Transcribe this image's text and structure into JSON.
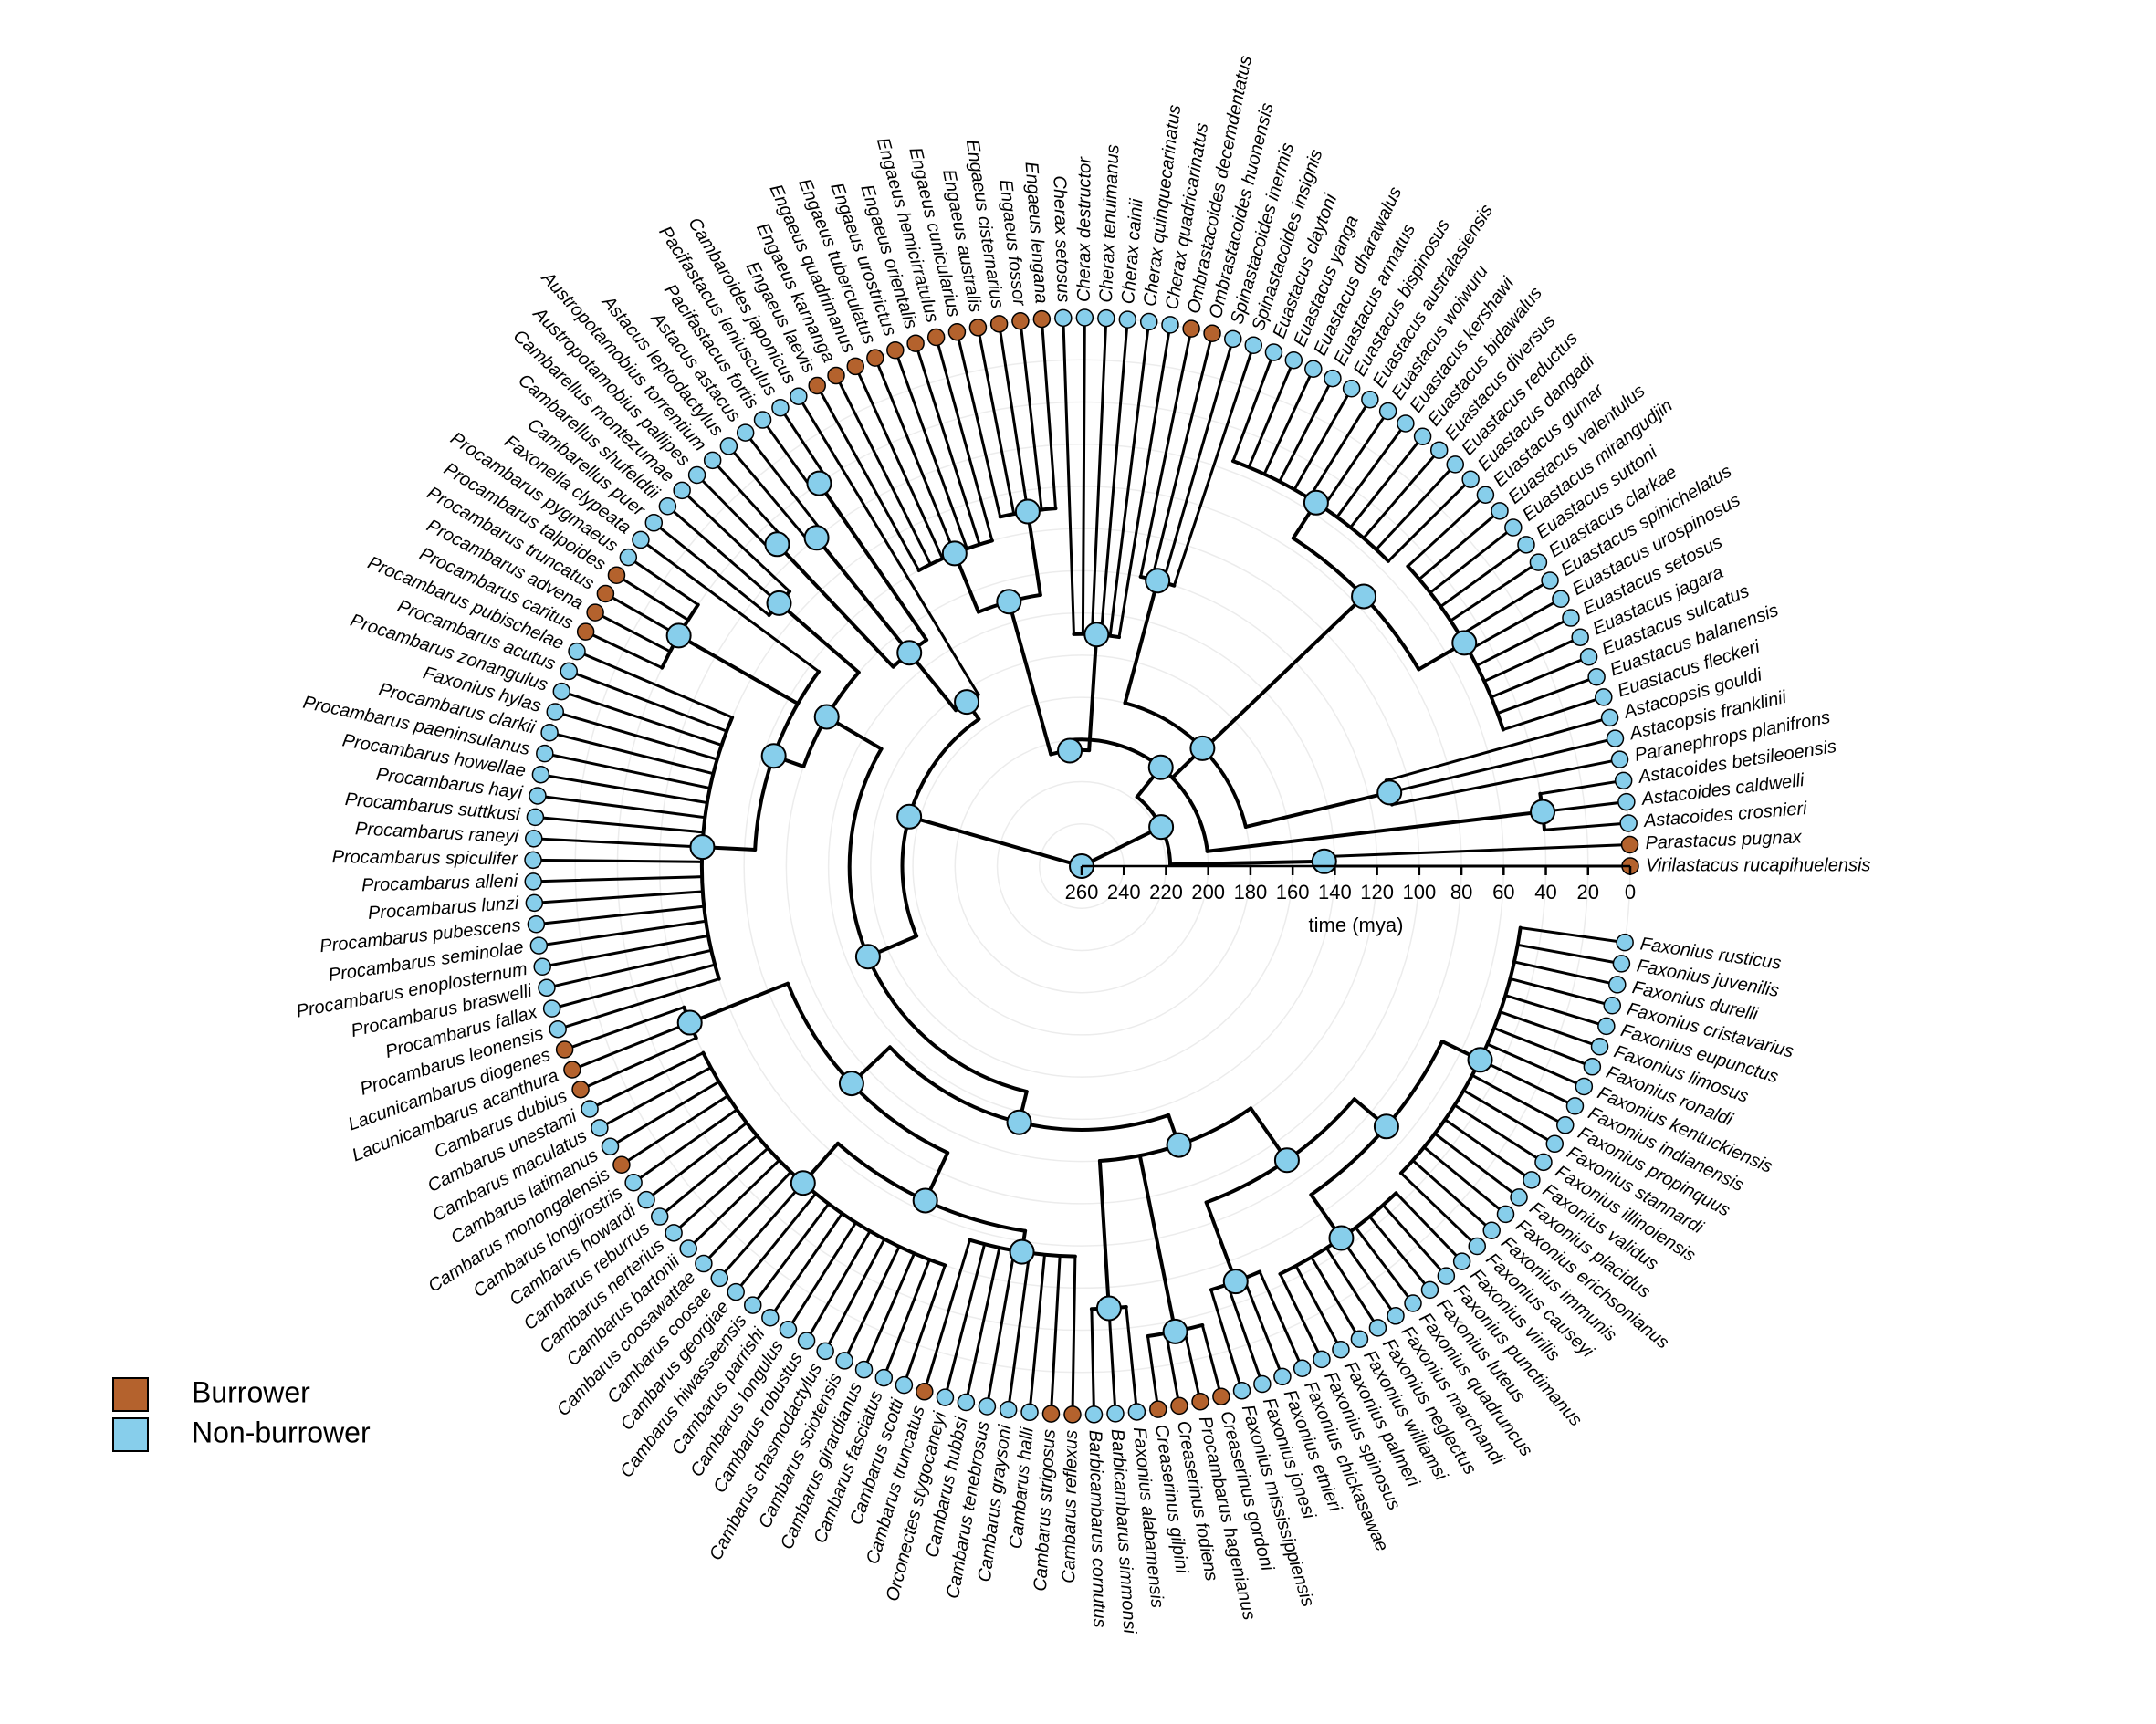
{
  "tips": [
    {
      "label": "Virilastacus rucapihuelensis",
      "state": 0
    },
    {
      "label": "Parastacus pugnax",
      "state": 0
    },
    {
      "label": "Astacoides crosnieri",
      "state": 1
    },
    {
      "label": "Astacoides caldwelli",
      "state": 1
    },
    {
      "label": "Astacoides betsileoensis",
      "state": 1
    },
    {
      "label": "Paranephrops planifrons",
      "state": 1
    },
    {
      "label": "Astacopsis franklinii",
      "state": 1
    },
    {
      "label": "Astacopsis gouldi",
      "state": 1
    },
    {
      "label": "Euastacus fleckeri",
      "state": 1
    },
    {
      "label": "Euastacus balanensis",
      "state": 1
    },
    {
      "label": "Euastacus sulcatus",
      "state": 1
    },
    {
      "label": "Euastacus jagara",
      "state": 1
    },
    {
      "label": "Euastacus setosus",
      "state": 1
    },
    {
      "label": "Euastacus urospinosus",
      "state": 1
    },
    {
      "label": "Euastacus spinichelatus",
      "state": 1
    },
    {
      "label": "Euastacus clarkae",
      "state": 1
    },
    {
      "label": "Euastacus suttoni",
      "state": 1
    },
    {
      "label": "Euastacus mirangudjin",
      "state": 1
    },
    {
      "label": "Euastacus valentulus",
      "state": 1
    },
    {
      "label": "Euastacus gumar",
      "state": 1
    },
    {
      "label": "Euastacus dangadi",
      "state": 1
    },
    {
      "label": "Euastacus reductus",
      "state": 1
    },
    {
      "label": "Euastacus diversus",
      "state": 1
    },
    {
      "label": "Euastacus bidawalus",
      "state": 1
    },
    {
      "label": "Euastacus kershawi",
      "state": 1
    },
    {
      "label": "Euastacus woiwuru",
      "state": 1
    },
    {
      "label": "Euastacus australasiensis",
      "state": 1
    },
    {
      "label": "Euastacus bispinosus",
      "state": 1
    },
    {
      "label": "Euastacus armatus",
      "state": 1
    },
    {
      "label": "Euastacus dharawalus",
      "state": 1
    },
    {
      "label": "Euastacus yanga",
      "state": 1
    },
    {
      "label": "Euastacus claytoni",
      "state": 1
    },
    {
      "label": "Spinastacoides insignis",
      "state": 1
    },
    {
      "label": "Spinastacoides inermis",
      "state": 1
    },
    {
      "label": "Ombrastacoides huonensis",
      "state": 0
    },
    {
      "label": "Ombrastacoides decemdentatus",
      "state": 0
    },
    {
      "label": "Cherax quadricarinatus",
      "state": 1
    },
    {
      "label": "Cherax quinquecarinatus",
      "state": 1
    },
    {
      "label": "Cherax cainii",
      "state": 1
    },
    {
      "label": "Cherax tenuimanus",
      "state": 1
    },
    {
      "label": "Cherax destructor",
      "state": 1
    },
    {
      "label": "Cherax setosus",
      "state": 1
    },
    {
      "label": "Engaeus lengana",
      "state": 0
    },
    {
      "label": "Engaeus fossor",
      "state": 0
    },
    {
      "label": "Engaeus cisternarius",
      "state": 0
    },
    {
      "label": "Engaeus australis",
      "state": 0
    },
    {
      "label": "Engaeus cunicularius",
      "state": 0
    },
    {
      "label": "Engaeus hemicirratulus",
      "state": 0
    },
    {
      "label": "Engaeus orientalis",
      "state": 0
    },
    {
      "label": "Engaeus urostrictus",
      "state": 0
    },
    {
      "label": "Engaeus tuberculatus",
      "state": 0
    },
    {
      "label": "Engaeus quadrimanus",
      "state": 0
    },
    {
      "label": "Engaeus karnanga",
      "state": 0
    },
    {
      "label": "Engaeus laevis",
      "state": 0
    },
    {
      "label": "Cambaroides japonicus",
      "state": 1
    },
    {
      "label": "Pacifastacus leniusculus",
      "state": 1
    },
    {
      "label": "Pacifastacus fortis",
      "state": 1
    },
    {
      "label": "Astacus astacus",
      "state": 1
    },
    {
      "label": "Astacus leptodactylus",
      "state": 1
    },
    {
      "label": "Austropotamobius torrentium",
      "state": 1
    },
    {
      "label": "Austropotamobius pallipes",
      "state": 1
    },
    {
      "label": "Cambarellus montezumae",
      "state": 1
    },
    {
      "label": "Cambarellus shufeldtii",
      "state": 1
    },
    {
      "label": "Cambarellus puer",
      "state": 1
    },
    {
      "label": "Faxonella clypeata",
      "state": 1
    },
    {
      "label": "Procambarus pygmaeus",
      "state": 1
    },
    {
      "label": "Procambarus talpoides",
      "state": 0
    },
    {
      "label": "Procambarus truncatus",
      "state": 0
    },
    {
      "label": "Procambarus advena",
      "state": 0
    },
    {
      "label": "Procambarus caritus",
      "state": 0
    },
    {
      "label": "Procambarus pubischelae",
      "state": 1
    },
    {
      "label": "Procambarus acutus",
      "state": 1
    },
    {
      "label": "Procambarus zonangulus",
      "state": 1
    },
    {
      "label": "Faxonius hylas",
      "state": 1
    },
    {
      "label": "Procambarus clarkii",
      "state": 1
    },
    {
      "label": "Procambarus paeninsulanus",
      "state": 1
    },
    {
      "label": "Procambarus howellae",
      "state": 1
    },
    {
      "label": "Procambarus hayi",
      "state": 1
    },
    {
      "label": "Procambarus suttkusi",
      "state": 1
    },
    {
      "label": "Procambarus raneyi",
      "state": 1
    },
    {
      "label": "Procambarus spiculifer",
      "state": 1
    },
    {
      "label": "Procambarus alleni",
      "state": 1
    },
    {
      "label": "Procambarus lunzi",
      "state": 1
    },
    {
      "label": "Procambarus pubescens",
      "state": 1
    },
    {
      "label": "Procambarus seminolae",
      "state": 1
    },
    {
      "label": "Procambarus enoplosternum",
      "state": 1
    },
    {
      "label": "Procambarus braswelli",
      "state": 1
    },
    {
      "label": "Procambarus fallax",
      "state": 1
    },
    {
      "label": "Procambarus leonensis",
      "state": 1
    },
    {
      "label": "Lacunicambarus diogenes",
      "state": 0
    },
    {
      "label": "Lacunicambarus acanthura",
      "state": 0
    },
    {
      "label": "Cambarus dubius",
      "state": 0
    },
    {
      "label": "Cambarus unestami",
      "state": 1
    },
    {
      "label": "Cambarus maculatus",
      "state": 1
    },
    {
      "label": "Cambarus latimanus",
      "state": 1
    },
    {
      "label": "Cambarus monongalensis",
      "state": 0
    },
    {
      "label": "Cambarus longirostris",
      "state": 1
    },
    {
      "label": "Cambarus howardi",
      "state": 1
    },
    {
      "label": "Cambarus reburrus",
      "state": 1
    },
    {
      "label": "Cambarus nerterius",
      "state": 1
    },
    {
      "label": "Cambarus bartonii",
      "state": 1
    },
    {
      "label": "Cambarus coosawattae",
      "state": 1
    },
    {
      "label": "Cambarus coosae",
      "state": 1
    },
    {
      "label": "Cambarus georgiae",
      "state": 1
    },
    {
      "label": "Cambarus hiwasseensis",
      "state": 1
    },
    {
      "label": "Cambarus parrishi",
      "state": 1
    },
    {
      "label": "Cambarus longulus",
      "state": 1
    },
    {
      "label": "Cambarus robustus",
      "state": 1
    },
    {
      "label": "Cambarus chasmodactylus",
      "state": 1
    },
    {
      "label": "Cambarus sciotensis",
      "state": 1
    },
    {
      "label": "Cambarus girardianus",
      "state": 1
    },
    {
      "label": "Cambarus fasciatus",
      "state": 1
    },
    {
      "label": "Cambarus scotti",
      "state": 1
    },
    {
      "label": "Cambarus truncatus",
      "state": 0
    },
    {
      "label": "Orconectes stygocaneyi",
      "state": 1
    },
    {
      "label": "Cambarus hubbsi",
      "state": 1
    },
    {
      "label": "Cambarus tenebrosus",
      "state": 1
    },
    {
      "label": "Cambarus graysoni",
      "state": 1
    },
    {
      "label": "Cambarus halli",
      "state": 1
    },
    {
      "label": "Cambarus strigosus",
      "state": 0
    },
    {
      "label": "Cambarus reflexus",
      "state": 0
    },
    {
      "label": "Barbicambarus cornutus",
      "state": 1
    },
    {
      "label": "Barbicambarus simmonsi",
      "state": 1
    },
    {
      "label": "Faxonius alabamensis",
      "state": 1
    },
    {
      "label": "Creaserinus gilpini",
      "state": 0
    },
    {
      "label": "Creaserinus fodiens",
      "state": 0
    },
    {
      "label": "Procambarus hagenianus",
      "state": 0
    },
    {
      "label": "Creaserinus gordoni",
      "state": 0
    },
    {
      "label": "Faxonius mississippiensis",
      "state": 1
    },
    {
      "label": "Faxonius jonesi",
      "state": 1
    },
    {
      "label": "Faxonius etnieri",
      "state": 1
    },
    {
      "label": "Faxonius chickasawae",
      "state": 1
    },
    {
      "label": "Faxonius spinosus",
      "state": 1
    },
    {
      "label": "Faxonius palmeri",
      "state": 1
    },
    {
      "label": "Faxonius williamsi",
      "state": 1
    },
    {
      "label": "Faxonius neglectus",
      "state": 1
    },
    {
      "label": "Faxonius marchandi",
      "state": 1
    },
    {
      "label": "Faxonius quadruncus",
      "state": 1
    },
    {
      "label": "Faxonius luteus",
      "state": 1
    },
    {
      "label": "Faxonius punctimanus",
      "state": 1
    },
    {
      "label": "Faxonius virilis",
      "state": 1
    },
    {
      "label": "Faxonius causeyi",
      "state": 1
    },
    {
      "label": "Faxonius immunis",
      "state": 1
    },
    {
      "label": "Faxonius erichsonianus",
      "state": 1
    },
    {
      "label": "Faxonius placidus",
      "state": 1
    },
    {
      "label": "Faxonius validus",
      "state": 1
    },
    {
      "label": "Faxonius illinoiensis",
      "state": 1
    },
    {
      "label": "Faxonius stannardi",
      "state": 1
    },
    {
      "label": "Faxonius propinquus",
      "state": 1
    },
    {
      "label": "Faxonius indianensis",
      "state": 1
    },
    {
      "label": "Faxonius kentuckiensis",
      "state": 1
    },
    {
      "label": "Faxonius ronaldi",
      "state": 1
    },
    {
      "label": "Faxonius limosus",
      "state": 1
    },
    {
      "label": "Faxonius eupunctus",
      "state": 1
    },
    {
      "label": "Faxonius cristavarius",
      "state": 1
    },
    {
      "label": "Faxonius durelli",
      "state": 1
    },
    {
      "label": "Faxonius juvenilis",
      "state": 1
    },
    {
      "label": "Faxonius rusticus",
      "state": 1
    }
  ],
  "axis": {
    "label": "time (mya)",
    "lim": [
      260,
      0
    ],
    "ticks": [
      260,
      240,
      220,
      200,
      180,
      160,
      140,
      120,
      100,
      80,
      60,
      40,
      20,
      0
    ]
  },
  "legend": [
    {
      "label": "Burrower",
      "color": "#b4622d"
    },
    {
      "label": "Non-burrower",
      "color": "#87ceeb"
    }
  ]
}
